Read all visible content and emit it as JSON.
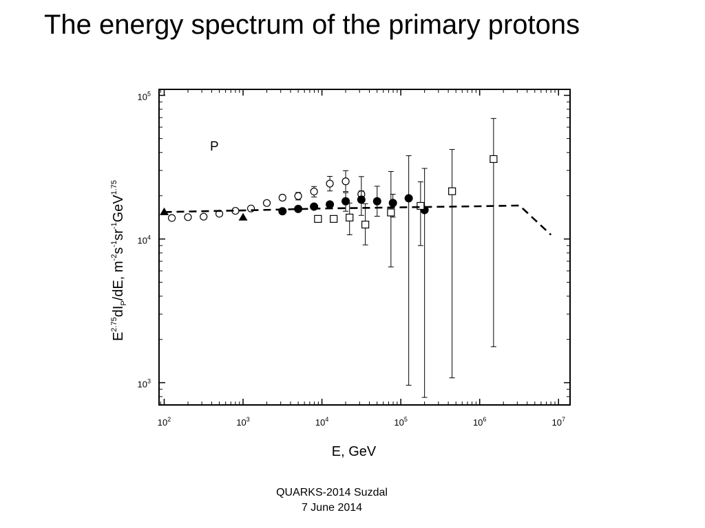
{
  "slide": {
    "title": "The energy spectrum of the primary protons",
    "footer_line1": "QUARKS-2014  Suzdal",
    "footer_line2": "7 June 2014"
  },
  "chart_data": {
    "type": "scatter",
    "title": "",
    "panel_label": "P",
    "xlabel": "E, GeV",
    "ylabel": {
      "parts": [
        {
          "t": "E"
        },
        {
          "t": "2.75",
          "sup": true
        },
        {
          "t": "dI"
        },
        {
          "t": "P",
          "sub": true
        },
        {
          "t": "/dE,  m"
        },
        {
          "t": "-2",
          "sup": true
        },
        {
          "t": "s"
        },
        {
          "t": "-1",
          "sup": true
        },
        {
          "t": "sr"
        },
        {
          "t": "-1",
          "sup": true
        },
        {
          "t": "GeV"
        },
        {
          "t": "1.75",
          "sup": true
        }
      ]
    },
    "x_scale": "log",
    "y_scale": "log",
    "xlim": [
      86,
      14000000
    ],
    "ylim": [
      700,
      110000
    ],
    "grid": false,
    "legend": "none",
    "x_ticks": [
      {
        "base": "10",
        "exp": "2",
        "value": 100
      },
      {
        "base": "10",
        "exp": "3",
        "value": 1000
      },
      {
        "base": "10",
        "exp": "4",
        "value": 10000
      },
      {
        "base": "10",
        "exp": "5",
        "value": 100000
      },
      {
        "base": "10",
        "exp": "6",
        "value": 1000000
      },
      {
        "base": "10",
        "exp": "7",
        "value": 10000000
      }
    ],
    "y_ticks": [
      {
        "base": "10",
        "exp": "3",
        "value": 1000
      },
      {
        "base": "10",
        "exp": "4",
        "value": 10000
      },
      {
        "base": "10",
        "exp": "5",
        "value": 100000
      }
    ],
    "series": [
      {
        "marker": "triangle-filled",
        "points": [
          {
            "x": 100,
            "y": 15500
          },
          {
            "x": 1000,
            "y": 14200
          }
        ]
      },
      {
        "marker": "circle-open",
        "points": [
          {
            "x": 125,
            "y": 14000
          },
          {
            "x": 200,
            "y": 14200
          },
          {
            "x": 316,
            "y": 14300
          },
          {
            "x": 500,
            "y": 15000
          },
          {
            "x": 800,
            "y": 15700
          },
          {
            "x": 1260,
            "y": 16300
          },
          {
            "x": 2000,
            "y": 17800
          },
          {
            "x": 3160,
            "y": 19400,
            "ylo": 18600,
            "yhi": 20200
          },
          {
            "x": 5000,
            "y": 19900,
            "ylo": 18700,
            "yhi": 21100
          },
          {
            "x": 7940,
            "y": 21400,
            "ylo": 19600,
            "yhi": 23200
          },
          {
            "x": 12600,
            "y": 24300,
            "ylo": 21600,
            "yhi": 27300
          },
          {
            "x": 20000,
            "y": 25200,
            "ylo": 21400,
            "yhi": 29900
          },
          {
            "x": 31600,
            "y": 20500,
            "ylo": 19400,
            "yhi": 21600
          }
        ]
      },
      {
        "marker": "circle-filled",
        "points": [
          {
            "x": 3160,
            "y": 15600
          },
          {
            "x": 5000,
            "y": 16200
          },
          {
            "x": 7940,
            "y": 16800
          },
          {
            "x": 12600,
            "y": 17400
          },
          {
            "x": 20000,
            "y": 18300,
            "ylo": 15600,
            "yhi": 21000
          },
          {
            "x": 31600,
            "y": 18800,
            "ylo": 14600,
            "yhi": 27200
          },
          {
            "x": 50100,
            "y": 18300,
            "ylo": 14400,
            "yhi": 23300
          },
          {
            "x": 79400,
            "y": 17800,
            "ylo": 14200,
            "yhi": 20500
          },
          {
            "x": 126000,
            "y": 19200,
            "ylo": 960,
            "yhi": 38000
          },
          {
            "x": 200000,
            "y": 15900,
            "ylo": 790,
            "yhi": 31000
          }
        ]
      },
      {
        "marker": "square-open",
        "points": [
          {
            "x": 8910,
            "y": 13800
          },
          {
            "x": 14100,
            "y": 13800
          },
          {
            "x": 22400,
            "y": 14100,
            "ylo": 10700,
            "yhi": 17800
          },
          {
            "x": 35500,
            "y": 12600,
            "ylo": 9100,
            "yhi": 17600
          },
          {
            "x": 75000,
            "y": 15300,
            "ylo": 6400,
            "yhi": 29500
          },
          {
            "x": 178000,
            "y": 17000,
            "ylo": 9000,
            "yhi": 25000
          },
          {
            "x": 447000,
            "y": 21500,
            "ylo": 1080,
            "yhi": 42000
          },
          {
            "x": 1500000,
            "y": 36000,
            "ylo": 1780,
            "yhi": 69000
          }
        ]
      },
      {
        "marker": "dashed-line",
        "points": [
          {
            "x": 100,
            "y": 15400
          },
          {
            "x": 1000,
            "y": 15800
          },
          {
            "x": 10000,
            "y": 16300
          },
          {
            "x": 100000,
            "y": 16600
          },
          {
            "x": 1000000,
            "y": 16900
          },
          {
            "x": 3200000,
            "y": 17100
          },
          {
            "x": 8000000,
            "y": 10700
          }
        ]
      }
    ]
  }
}
